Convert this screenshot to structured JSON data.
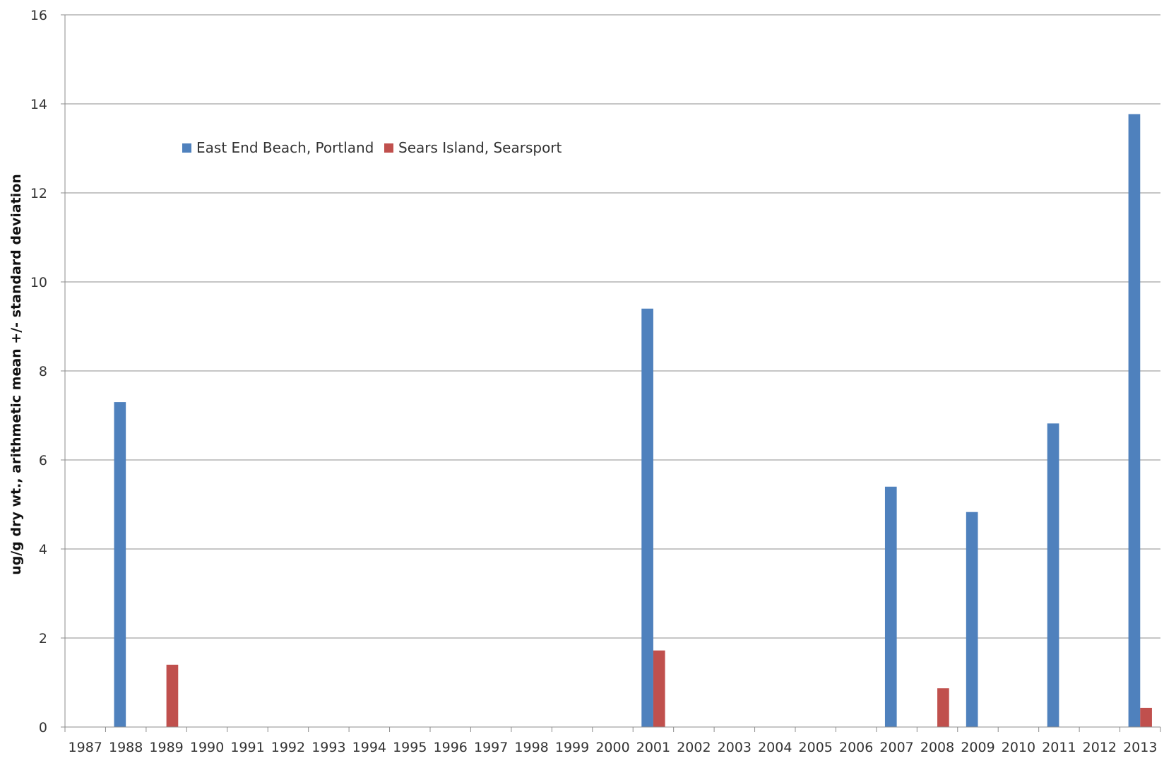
{
  "chart_data": {
    "type": "bar",
    "title": "",
    "xlabel": "",
    "ylabel": "ug/g dry wt., arithmetic mean +/- standard deviation",
    "ylim": [
      0,
      16
    ],
    "yticks": [
      0,
      2,
      4,
      6,
      8,
      10,
      12,
      14,
      16
    ],
    "grid": true,
    "legend_position": "top-left",
    "categories": [
      "1987",
      "1988",
      "1989",
      "1990",
      "1991",
      "1992",
      "1993",
      "1994",
      "1995",
      "1996",
      "1997",
      "1998",
      "1999",
      "2000",
      "2001",
      "2002",
      "2003",
      "2004",
      "2005",
      "2006",
      "2007",
      "2008",
      "2009",
      "2010",
      "2011",
      "2012",
      "2013"
    ],
    "series": [
      {
        "name": "East End Beach, Portland",
        "color": "#4F81BD",
        "values": [
          null,
          7.3,
          null,
          null,
          null,
          null,
          null,
          null,
          null,
          null,
          null,
          null,
          null,
          null,
          9.4,
          null,
          null,
          null,
          null,
          null,
          5.4,
          null,
          4.83,
          null,
          6.82,
          null,
          13.77
        ]
      },
      {
        "name": "Sears Island, Searsport",
        "color": "#C0504D",
        "values": [
          null,
          null,
          1.4,
          null,
          null,
          null,
          null,
          null,
          null,
          null,
          null,
          null,
          null,
          null,
          1.72,
          null,
          null,
          null,
          null,
          null,
          null,
          0.87,
          null,
          null,
          null,
          null,
          0.43
        ]
      }
    ]
  }
}
